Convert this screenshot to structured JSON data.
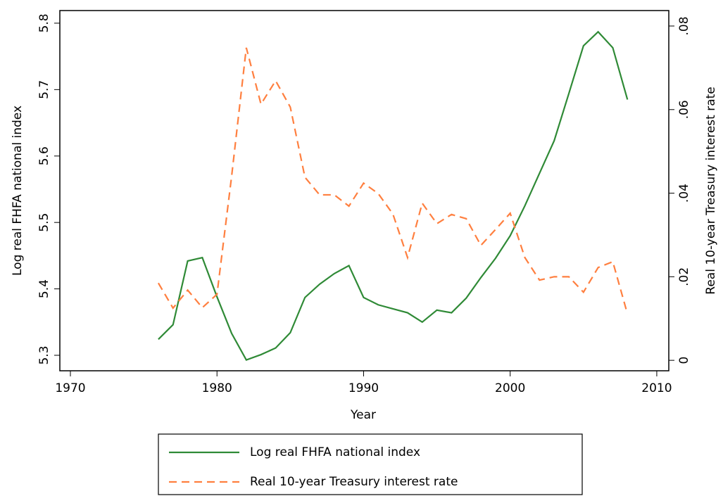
{
  "chart_data": {
    "type": "line",
    "x_label": "Year",
    "y_label": "Log real FHFA national index",
    "y2_label": "Real 10-year Treasury interest rate",
    "x": [
      1976,
      1977,
      1978,
      1979,
      1980,
      1981,
      1982,
      1983,
      1984,
      1985,
      1986,
      1987,
      1988,
      1989,
      1990,
      1991,
      1992,
      1993,
      1994,
      1995,
      1996,
      1997,
      1998,
      1999,
      2000,
      2001,
      2002,
      2003,
      2004,
      2005,
      2006,
      2007,
      2008
    ],
    "series": [
      {
        "name": "Log real FHFA national index",
        "color": "#2f8a36",
        "line_style": "solid",
        "axis": "y",
        "values": [
          5.324,
          5.346,
          5.442,
          5.447,
          5.388,
          5.333,
          5.293,
          5.301,
          5.311,
          5.334,
          5.387,
          5.407,
          5.423,
          5.435,
          5.387,
          5.376,
          5.37,
          5.364,
          5.35,
          5.368,
          5.364,
          5.386,
          5.417,
          5.446,
          5.48,
          5.525,
          5.574,
          5.623,
          5.694,
          5.766,
          5.787,
          5.763,
          5.685
        ]
      },
      {
        "name": "Real 10-year Treasury interest rate",
        "color": "#ff7f3f",
        "line_style": "dashed",
        "axis": "y2",
        "values": [
          0.0185,
          0.0125,
          0.0168,
          0.0126,
          0.0158,
          0.0441,
          0.0748,
          0.0613,
          0.0669,
          0.0606,
          0.0438,
          0.0396,
          0.0396,
          0.0369,
          0.0424,
          0.0399,
          0.035,
          0.0246,
          0.0376,
          0.0327,
          0.0349,
          0.0339,
          0.0275,
          0.0313,
          0.0352,
          0.0246,
          0.0192,
          0.02,
          0.02,
          0.0163,
          0.0222,
          0.0236,
          0.0111
        ]
      }
    ],
    "xlim": [
      1969.28,
      2010.82
    ],
    "xticks": [
      1970,
      1980,
      1990,
      2000,
      2010
    ],
    "ylim": [
      5.2767,
      5.819
    ],
    "yticks": [
      5.3,
      5.4,
      5.5,
      5.6,
      5.7,
      5.8
    ],
    "y2lim": [
      -0.0025,
      0.0837
    ],
    "y2ticks": [
      0,
      {
        "value": 0.02,
        "label": ".02"
      },
      {
        "value": 0.04,
        "label": ".04"
      },
      {
        "value": 0.06,
        "label": ".06"
      },
      {
        "value": 0.08,
        "label": ".08"
      }
    ],
    "legend_position": "bottom"
  }
}
